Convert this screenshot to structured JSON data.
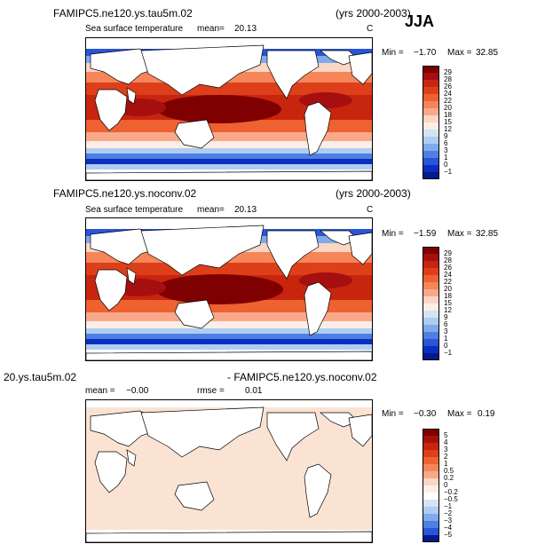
{
  "season": "JJA",
  "panels": [
    {
      "case": "FAMIPC5.ne120.ys.tau5m.02",
      "years": "(yrs 2000-2003)",
      "variable": "Sea surface temperature",
      "mean_label": "mean=",
      "mean": "20.13",
      "units": "C",
      "min_label": "Min =",
      "min": "−1.70",
      "max_label": "Max =",
      "max": "32.85",
      "colorbar_levels": [
        "29",
        "28",
        "26",
        "24",
        "22",
        "20",
        "18",
        "15",
        "12",
        "9",
        "6",
        "3",
        "1",
        "0",
        "−1"
      ]
    },
    {
      "case": "FAMIPC5.ne120.ys.noconv.02",
      "years": "(yrs 2000-2003)",
      "variable": "Sea surface temperature",
      "mean_label": "mean=",
      "mean": "20.13",
      "units": "C",
      "min_label": "Min =",
      "min": "−1.59",
      "max_label": "Max =",
      "max": "32.85",
      "colorbar_levels": [
        "29",
        "28",
        "26",
        "24",
        "22",
        "20",
        "18",
        "15",
        "12",
        "9",
        "6",
        "3",
        "1",
        "0",
        "−1"
      ]
    },
    {
      "case_a": "20.ys.tau5m.02",
      "case_b": "- FAMIPC5.ne120.ys.noconv.02",
      "mean_label": "mean =",
      "mean": "−0.00",
      "rmse_label": "rmse =",
      "rmse": "0.01",
      "min_label": "Min =",
      "min": "−0.30",
      "max_label": "Max =",
      "max": "0.19",
      "colorbar_levels": [
        "5",
        "4",
        "3",
        "2",
        "1",
        "0.5",
        "0.2",
        "0",
        "−0.2",
        "−0.5",
        "−1",
        "−2",
        "−3",
        "−4",
        "−5"
      ]
    }
  ],
  "colors": {
    "sst_scale": [
      "#7f0000",
      "#a50f0f",
      "#c8250e",
      "#dd3f1a",
      "#ee6130",
      "#f6865a",
      "#f9a98a",
      "#fcd6c4",
      "#fbeee6",
      "#d3e4f5",
      "#aecdf1",
      "#7faaec",
      "#4f7fe3",
      "#2a55d6",
      "#0a2fc0",
      "#051a8c"
    ],
    "diff_scale": [
      "#7f0000",
      "#a50f0f",
      "#c8250e",
      "#dd3f1a",
      "#ee6130",
      "#f6865a",
      "#f9a98a",
      "#fcd6c4",
      "#fbeee6",
      "#ffffff",
      "#d3e4f5",
      "#aecdf1",
      "#7faaec",
      "#4f7fe3",
      "#2a55d6",
      "#051a8c"
    ],
    "land": "#ffffff",
    "coast": "#000000",
    "diff_fill": "#fbe3d3"
  },
  "chart_data": [
    {
      "type": "heatmap",
      "title": "Sea surface temperature",
      "case": "FAMIPC5.ne120.ys.tau5m.02",
      "units": "C",
      "mean": 20.13,
      "min": -1.7,
      "max": 32.85,
      "levels": [
        -1,
        0,
        1,
        3,
        6,
        9,
        12,
        15,
        18,
        20,
        22,
        24,
        26,
        28,
        29
      ]
    },
    {
      "type": "heatmap",
      "title": "Sea surface temperature",
      "case": "FAMIPC5.ne120.ys.noconv.02",
      "units": "C",
      "mean": 20.13,
      "min": -1.59,
      "max": 32.85,
      "levels": [
        -1,
        0,
        1,
        3,
        6,
        9,
        12,
        15,
        18,
        20,
        22,
        24,
        26,
        28,
        29
      ]
    },
    {
      "type": "heatmap",
      "title": "20.ys.tau5m.02 - FAMIPC5.ne120.ys.noconv.02",
      "mean": -0.0,
      "rmse": 0.01,
      "min": -0.3,
      "max": 0.19,
      "levels": [
        -5,
        -4,
        -3,
        -2,
        -1,
        -0.5,
        -0.2,
        0,
        0.2,
        0.5,
        1,
        2,
        3,
        4,
        5
      ]
    }
  ]
}
